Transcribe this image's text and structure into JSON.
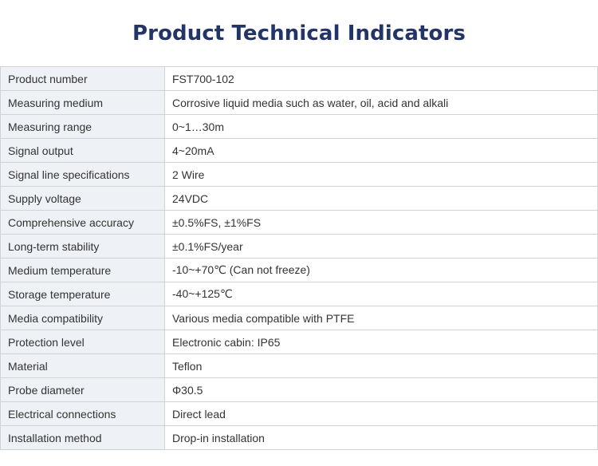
{
  "title": "Product Technical Indicators",
  "rows": [
    {
      "label": "Product number",
      "value": "FST700-102"
    },
    {
      "label": "Measuring medium",
      "value": "Corrosive liquid media such as water, oil, acid and alkali"
    },
    {
      "label": "Measuring range",
      "value": "0~1…30m"
    },
    {
      "label": "Signal output",
      "value": "4~20mA"
    },
    {
      "label": "Signal line specifications",
      "value": "2 Wire"
    },
    {
      "label": "Supply voltage",
      "value": "24VDC"
    },
    {
      "label": "Comprehensive accuracy",
      "value": "±0.5%FS, ±1%FS"
    },
    {
      "label": "Long-term stability",
      "value": "±0.1%FS/year"
    },
    {
      "label": "Medium temperature",
      "value": "-10~+70℃ (Can not freeze)"
    },
    {
      "label": "Storage temperature",
      "value": "-40~+125℃"
    },
    {
      "label": "Media compatibility",
      "value": "Various media compatible with PTFE"
    },
    {
      "label": "Protection level",
      "value": "Electronic cabin: IP65"
    },
    {
      "label": "Material",
      "value": "Teflon"
    },
    {
      "label": "Probe diameter",
      "value": "Φ30.5"
    },
    {
      "label": "Electrical connections",
      "value": "Direct lead"
    },
    {
      "label": "Installation method",
      "value": "Drop-in installation"
    }
  ]
}
